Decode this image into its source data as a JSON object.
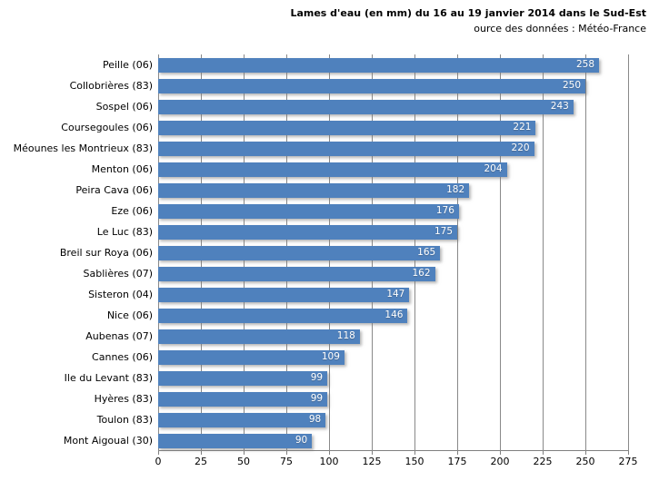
{
  "chart": {
    "title": "Lames d'eau (en mm) du 16 au 19 janvier 2014 dans le Sud-Est",
    "subtitle": "ource des données : Météo-France"
  },
  "chart_data": {
    "type": "bar",
    "orientation": "horizontal",
    "title": "Lames d'eau (en mm) du 16 au 19 janvier 2014 dans le Sud-Est",
    "subtitle": "ource des données : Météo-France",
    "categories": [
      "Peille (06)",
      "Collobrières (83)",
      "Sospel (06)",
      "Coursegoules (06)",
      "Méounes les Montrieux (83)",
      "Menton (06)",
      "Peira Cava (06)",
      "Eze (06)",
      "Le Luc (83)",
      "Breil sur Roya (06)",
      "Sablières (07)",
      "Sisteron (04)",
      "Nice (06)",
      "Aubenas (07)",
      "Cannes (06)",
      "Ile du Levant (83)",
      "Hyères (83)",
      "Toulon (83)",
      "Mont Aigoual (30)"
    ],
    "values": [
      258,
      250,
      243,
      221,
      220,
      204,
      182,
      176,
      175,
      165,
      162,
      147,
      146,
      118,
      109,
      99,
      99,
      98,
      90
    ],
    "x_ticks": [
      0,
      25,
      50,
      75,
      100,
      125,
      150,
      175,
      200,
      225,
      250,
      275
    ],
    "xlim": [
      0,
      275
    ],
    "xlabel": "",
    "ylabel": "",
    "grid": true,
    "legend": "none",
    "data_labels": "inside-end",
    "colors": {
      "bar": "#4F81BD",
      "gridline": "#898989",
      "axis_line": "#808080",
      "label_text": "#000000",
      "value_text": "#FFFFFF",
      "background": "#FFFFFF"
    }
  }
}
